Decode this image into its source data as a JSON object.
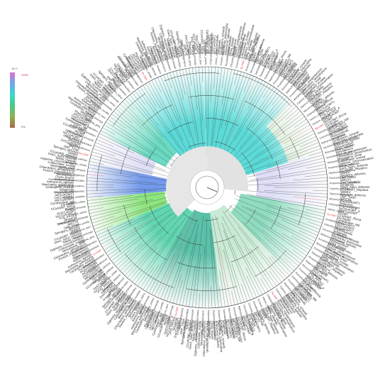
{
  "legend": {
    "top_label": "1E-0",
    "max_label": "100%",
    "min_label": "0%",
    "colors": [
      "#e070c8",
      "#6fa8f0",
      "#3ed6c8",
      "#47c88a",
      "#8fb050",
      "#a86a48"
    ]
  },
  "tree": {
    "leaf_count": 360,
    "clade_colors": [
      "#3fd3d0",
      "#50d4b6",
      "#3eb69a",
      "#46cfa4",
      "#7cd6b6",
      "#bfe6cc",
      "#e9ecd0",
      "#d8d8f4",
      "#3fd3d0",
      "#5a88e8",
      "#7ae06a",
      "#4ab88c"
    ],
    "highlight_color": "#e23a3a",
    "branch_color": "#333333",
    "leaf_labels": [
      "Gsw1_Spiro_deformis",
      "CCoAOMT_Hepatica",
      "SbWE4",
      "Spirogyra_deformis",
      "OMT_Tmari",
      "AbFCT5",
      "ZmCCoAOMT1",
      "Dmaternis",
      "PYD_PPOCd",
      "VyCCoAOMT_4",
      "GmCCoAOMT",
      "PtrOMT",
      "CCoAOMT_Riccia",
      "Clo-fragilis",
      "Cymbopogon_spp",
      "MtCCoAOMT1",
      "OsCCoAOMT1",
      "AtCCoAOMT1",
      "Physcomitrella",
      "Selaginella",
      "Ceratopteris_richardii",
      "Marchantia_polymorpha",
      "Anthoceros_agrestis",
      "Klebsormidium",
      "Chara_braunii",
      "Mesotaenium",
      "Penium_margaritaceum",
      "Chlorokybus_atmophyticus",
      "Mesostigma_viride",
      "Coleochaete_scutata",
      "Zygnema_circumcarinatum",
      "Nitella_mirabilis"
    ],
    "inner_labels": [
      "Cyanea_perlonga",
      "Ostreococcus_tauri",
      "Micromonas_pusilla",
      "Chlamydomonas_reinhardtii",
      "Volvox_carteri",
      "Gonium_pectorale",
      "Dunaliella_salina",
      "Chlorella_variabilis",
      "Coccomyxa_subellipsoidea",
      "Bathycoccus_prasinos",
      "Auxenochlorella_protothecoides",
      "Monoraphidium_neglectum",
      "Scenedesmus_obliquus",
      "Tetraselmis_striata",
      "Pyramimonas_parkeae",
      "Nephroselmis_olivacea",
      "Picocystis_salinarum",
      "Prasinococcus_capsulatus",
      "Pycnococcus_provasolii",
      "Dolichomastix_tenuilepis",
      "Crustomastix_stigmatica",
      "Mamiella_gilva"
    ],
    "highlight_labels": [
      "Pp-OMT",
      "Sm-OMT",
      "Mp-OMT",
      "Aa-OMT",
      "Kn-OMT",
      "Cb-OMT",
      "Zc-OMT",
      "Sd-OMT"
    ]
  }
}
